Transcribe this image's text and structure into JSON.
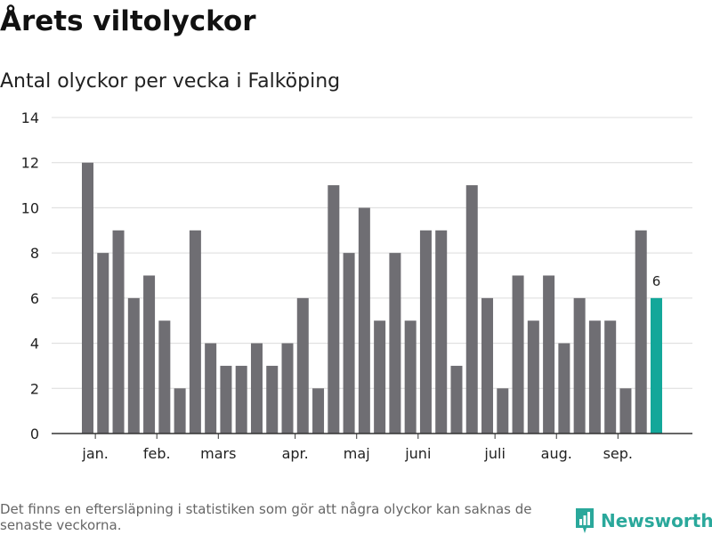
{
  "title": "Årets viltolyckor",
  "subtitle": "Antal olyckor per vecka i Falköping",
  "footnote": "Det finns en eftersläpning i statistiken som gör att några olyckor kan saknas de senaste veckorna.",
  "brand": "Newsworthy",
  "colors": {
    "bar": "#6f6e73",
    "highlight": "#13a79a",
    "grid": "#dcdcdc",
    "axis": "#333333",
    "brand": "#2aa89b"
  },
  "chart_data": {
    "type": "bar",
    "x": [
      1,
      2,
      3,
      4,
      5,
      6,
      7,
      8,
      9,
      10,
      11,
      12,
      13,
      14,
      15,
      16,
      17,
      18,
      19,
      20,
      21,
      22,
      23,
      24,
      25,
      26,
      27,
      28,
      29,
      30,
      31,
      32,
      33,
      34,
      35,
      36,
      37,
      38
    ],
    "values": [
      12,
      8,
      9,
      6,
      7,
      5,
      2,
      9,
      4,
      3,
      3,
      4,
      3,
      4,
      6,
      2,
      11,
      8,
      10,
      5,
      8,
      5,
      9,
      9,
      3,
      11,
      6,
      2,
      7,
      5,
      7,
      4,
      6,
      5,
      5,
      2,
      9,
      6
    ],
    "highlight_index": 37,
    "data_labels": [
      {
        "index": 37,
        "text": "6"
      }
    ],
    "month_labels": [
      {
        "label": "jan.",
        "pos": 1.5
      },
      {
        "label": "feb.",
        "pos": 5.5
      },
      {
        "label": "mars",
        "pos": 9.5
      },
      {
        "label": "apr.",
        "pos": 14.5
      },
      {
        "label": "maj",
        "pos": 18.5
      },
      {
        "label": "juni",
        "pos": 22.5
      },
      {
        "label": "juli",
        "pos": 27.5
      },
      {
        "label": "aug.",
        "pos": 31.5
      },
      {
        "label": "sep.",
        "pos": 35.5
      }
    ],
    "yticks": [
      0,
      2,
      4,
      6,
      8,
      10,
      12,
      14
    ],
    "ylim": [
      0,
      14
    ],
    "grid": true
  }
}
